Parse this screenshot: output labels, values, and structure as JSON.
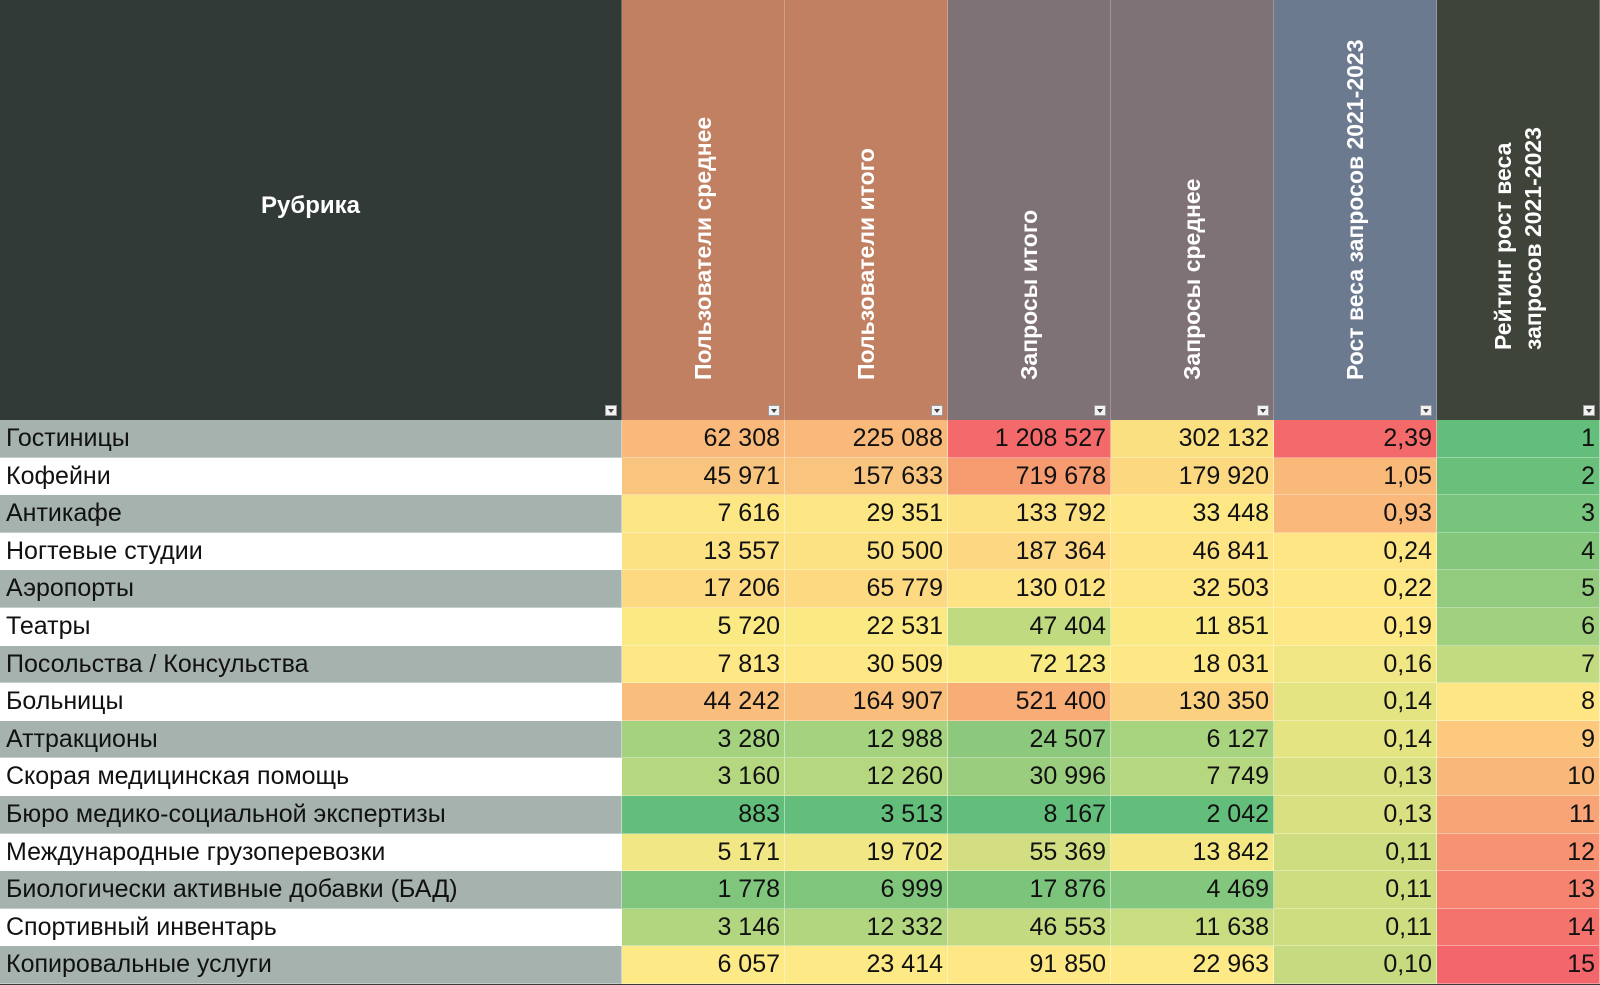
{
  "headers": {
    "rubric": "Рубрика",
    "columns": [
      {
        "lines": [
          "Пользователи среднее"
        ],
        "bg": "#c28062"
      },
      {
        "lines": [
          "Пользователи итого"
        ],
        "bg": "#c28062"
      },
      {
        "lines": [
          "Запросы итого"
        ],
        "bg": "#7f7276"
      },
      {
        "lines": [
          "Запросы среднее"
        ],
        "bg": "#7f7276"
      },
      {
        "lines": [
          "Рост веса запросов 2021-2023"
        ],
        "bg": "#6c7a90"
      },
      {
        "lines": [
          "Рейтинг рост веса",
          "запросов 2021-2023"
        ],
        "bg": "#3f443a"
      }
    ]
  },
  "colors": {
    "rubric_header_bg": "#323a38",
    "row_band_gray": "#a6b2ae",
    "row_band_white": "#ffffff"
  },
  "rows": [
    {
      "name": "Гостиницы",
      "values": [
        "62 308",
        "225 088",
        "1 208 527",
        "302 132",
        "2,39",
        "1"
      ],
      "colors": [
        "#f8b97a",
        "#f8b97a",
        "#f46a6a",
        "#fbe082",
        "#f46a6a",
        "#63be7b"
      ]
    },
    {
      "name": "Кофейни",
      "values": [
        "45 971",
        "157 633",
        "719 678",
        "179 920",
        "1,05",
        "2"
      ],
      "colors": [
        "#f9c47d",
        "#f9c47d",
        "#f69a70",
        "#fcd880",
        "#f9b979",
        "#6ac07b"
      ]
    },
    {
      "name": "Антикафе",
      "values": [
        "7 616",
        "29 351",
        "133 792",
        "33 448",
        "0,93",
        "3"
      ],
      "colors": [
        "#fde784",
        "#fde784",
        "#fde283",
        "#fee885",
        "#fab87a",
        "#77c47c"
      ]
    },
    {
      "name": "Ногтевые студии",
      "values": [
        "13 557",
        "50 500",
        "187 364",
        "46 841",
        "0,24",
        "4"
      ],
      "colors": [
        "#fde283",
        "#fde283",
        "#fdd781",
        "#fee484",
        "#fee685",
        "#84c77c"
      ]
    },
    {
      "name": "Аэропорты",
      "values": [
        "17 206",
        "65 779",
        "130 012",
        "32 503",
        "0,22",
        "5"
      ],
      "colors": [
        "#fdda81",
        "#fdda81",
        "#fde383",
        "#fee685",
        "#fee885",
        "#92cb7e"
      ]
    },
    {
      "name": "Театры",
      "values": [
        "5 720",
        "22 531",
        "47 404",
        "11 851",
        "0,19",
        "6"
      ],
      "colors": [
        "#fbe984",
        "#fbe984",
        "#c0db7f",
        "#fbe984",
        "#fee885",
        "#a1d07f"
      ]
    },
    {
      "name": "Посольства / Консульства",
      "values": [
        "7 813",
        "30 509",
        "72 123",
        "18 031",
        "0,16",
        "7"
      ],
      "colors": [
        "#fee785",
        "#fee785",
        "#f9ea84",
        "#fee785",
        "#f0e784",
        "#c2db80"
      ]
    },
    {
      "name": "Больницы",
      "values": [
        "44 242",
        "164 907",
        "521 400",
        "130 350",
        "0,14",
        "8"
      ],
      "colors": [
        "#f9be7b",
        "#f9be7b",
        "#f8ad77",
        "#fbd17f",
        "#e4e483",
        "#fee685"
      ]
    },
    {
      "name": "Аттракционы",
      "values": [
        "3 280",
        "12 988",
        "24 507",
        "6 127",
        "0,14",
        "9"
      ],
      "colors": [
        "#a4d27f",
        "#a4d27f",
        "#8dc97d",
        "#a8d37f",
        "#e4e483",
        "#fcc97e"
      ]
    },
    {
      "name": "Скорая медицинская помощь",
      "values": [
        "3 160",
        "12 260",
        "30 996",
        "7 749",
        "0,13",
        "10"
      ],
      "colors": [
        "#b5d77f",
        "#b5d77f",
        "#9acd7e",
        "#b5d77f",
        "#d9e082",
        "#f9b87a"
      ]
    },
    {
      "name": "Бюро медико-социальной экспертизы",
      "values": [
        "883",
        "3 513",
        "8 167",
        "2 042",
        "0,13",
        "11"
      ],
      "colors": [
        "#63be7b",
        "#63be7b",
        "#63be7b",
        "#63be7b",
        "#d9e082",
        "#f8a477"
      ]
    },
    {
      "name": "Международные грузоперевозки",
      "values": [
        "5 171",
        "19 702",
        "55 369",
        "13 842",
        "0,11",
        "12"
      ],
      "colors": [
        "#f1e784",
        "#f1e784",
        "#d2de81",
        "#f5e884",
        "#cfdd81",
        "#f79373"
      ]
    },
    {
      "name": "Биологически активные добавки (БАД)",
      "values": [
        "1 778",
        "6 999",
        "17 876",
        "4 469",
        "0,11",
        "13"
      ],
      "colors": [
        "#7fc57c",
        "#7fc57c",
        "#7cc47c",
        "#83c67d",
        "#cfdd81",
        "#f58370"
      ]
    },
    {
      "name": "Спортивный инвентарь",
      "values": [
        "3 146",
        "12 332",
        "46 553",
        "11 638",
        "0,11",
        "14"
      ],
      "colors": [
        "#b2d67f",
        "#b2d67f",
        "#c3da80",
        "#c8dc80",
        "#cfdd81",
        "#f4736d"
      ]
    },
    {
      "name": "Копировальные услуги",
      "values": [
        "6 057",
        "23 414",
        "91 850",
        "22 963",
        "0,10",
        "15"
      ],
      "colors": [
        "#fde985",
        "#fde985",
        "#fde885",
        "#fde985",
        "#c6db80",
        "#f3666b"
      ]
    }
  ]
}
